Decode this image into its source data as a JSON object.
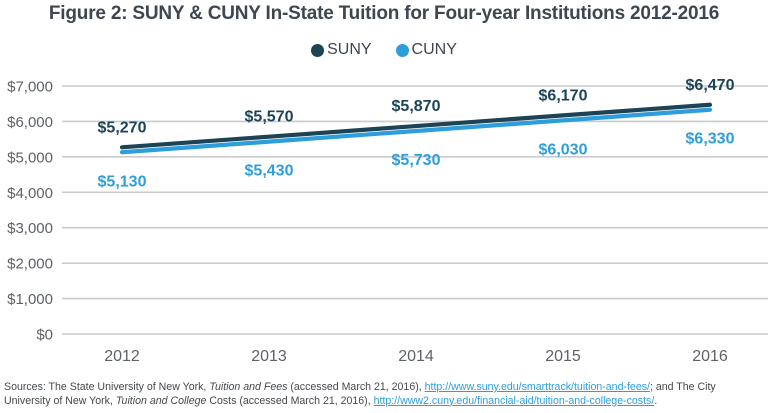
{
  "title": "Figure 2: SUNY & CUNY In-State Tuition for Four-year Institutions 2012-2016",
  "legend": {
    "items": [
      {
        "label": "SUNY",
        "color": "#1C4356"
      },
      {
        "label": "CUNY",
        "color": "#2E9EDB"
      }
    ]
  },
  "chart_data": {
    "type": "line",
    "title": "Figure 2: SUNY & CUNY In-State Tuition for Four-year Institutions 2012-2016",
    "x": [
      "2012",
      "2013",
      "2014",
      "2015",
      "2016"
    ],
    "series": [
      {
        "name": "SUNY",
        "color": "#1C4356",
        "values": [
          5270,
          5570,
          5870,
          6170,
          6470
        ],
        "point_labels": [
          "$5,270",
          "$5,570",
          "$5,870",
          "$6,170",
          "$6,470"
        ],
        "label_position": "above"
      },
      {
        "name": "CUNY",
        "color": "#2E9EDB",
        "values": [
          5130,
          5430,
          5730,
          6030,
          6330
        ],
        "point_labels": [
          "$5,130",
          "$5,430",
          "$5,730",
          "$6,030",
          "$6,330"
        ],
        "label_position": "below"
      }
    ],
    "xlabel": "",
    "ylabel": "",
    "ylim": [
      0,
      7000
    ],
    "yticks": [
      {
        "value": 0,
        "label": "$0"
      },
      {
        "value": 1000,
        "label": "$1,000"
      },
      {
        "value": 2000,
        "label": "$2,000"
      },
      {
        "value": 3000,
        "label": "$3,000"
      },
      {
        "value": 4000,
        "label": "$4,000"
      },
      {
        "value": 5000,
        "label": "$5,000"
      },
      {
        "value": 6000,
        "label": "$6,000"
      },
      {
        "value": 7000,
        "label": "$7,000"
      }
    ],
    "grid": true,
    "legend_position": "top-center"
  },
  "footer": {
    "segments": [
      {
        "style": "normal",
        "text": "Sources: The State University of New York, "
      },
      {
        "style": "italic",
        "text": "Tuition and Fees"
      },
      {
        "style": "normal",
        "text": " (accessed March 21, 2016), "
      },
      {
        "style": "link",
        "text": "http://www.suny.edu/smarttrack/tuition-and-fees/",
        "name": "suny-tuition-link"
      },
      {
        "style": "normal",
        "text": "; and The City"
      },
      {
        "style": "break",
        "text": ""
      },
      {
        "style": "normal",
        "text": "University of New York, "
      },
      {
        "style": "italic",
        "text": "Tuition and College"
      },
      {
        "style": "normal",
        "text": " Costs (accessed March 21, 2016), "
      },
      {
        "style": "link",
        "text": "http://www2.cuny.edu/financial-aid/tuition-and-college-costs/",
        "name": "cuny-tuition-link"
      },
      {
        "style": "normal",
        "text": "."
      }
    ]
  }
}
